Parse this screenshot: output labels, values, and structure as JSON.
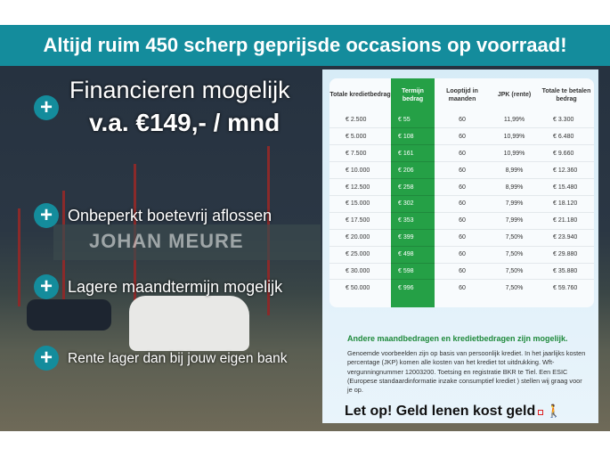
{
  "banner": {
    "title": "Altijd ruim 450 scherp geprijsde occasions op voorraad!"
  },
  "left": {
    "headline": "Financieren mogelijk",
    "price": "v.a. €149,- / mnd",
    "features": [
      "Onbeperkt boetevrij aflossen",
      "Lagere maandtermijn mogelijk",
      "Rente lager dan bij jouw eigen bank"
    ],
    "photo_sign": "JOHAN MEURE"
  },
  "table": {
    "headers": [
      "Totale kredietbedrag",
      "Termijn bedrag",
      "Looptijd in maanden",
      "JPK (rente)",
      "Totale te betalen bedrag"
    ],
    "rows": [
      [
        "€ 2.500",
        "€ 55",
        "60",
        "11,99%",
        "€ 3.300"
      ],
      [
        "€ 5.000",
        "€ 108",
        "60",
        "10,99%",
        "€ 6.480"
      ],
      [
        "€ 7.500",
        "€ 161",
        "60",
        "10,99%",
        "€ 9.660"
      ],
      [
        "€ 10.000",
        "€ 206",
        "60",
        "8,99%",
        "€ 12.360"
      ],
      [
        "€ 12.500",
        "€ 258",
        "60",
        "8,99%",
        "€ 15.480"
      ],
      [
        "€ 15.000",
        "€ 302",
        "60",
        "7,99%",
        "€ 18.120"
      ],
      [
        "€ 17.500",
        "€ 353",
        "60",
        "7,99%",
        "€ 21.180"
      ],
      [
        "€ 20.000",
        "€ 399",
        "60",
        "7,50%",
        "€ 23.940"
      ],
      [
        "€ 25.000",
        "€ 498",
        "60",
        "7,50%",
        "€ 29.880"
      ],
      [
        "€ 30.000",
        "€ 598",
        "60",
        "7,50%",
        "€ 35.880"
      ],
      [
        "€ 50.000",
        "€ 996",
        "60",
        "7,50%",
        "€ 59.760"
      ]
    ],
    "highlight_color": "#25a046"
  },
  "note": {
    "title": "Andere maandbedragen en kredietbedragen zijn mogelijk.",
    "body": "Genoemde voorbeelden zijn op basis van persoonlijk krediet. In het jaarlijks kosten percentage (JKP) komen alle kosten van het krediet tot uitdrukking. Wft-vergunningnummer 12003200. Toetsing en registratie BKR te Tiel. Een ESIC (Europese standaardinformatie inzake consumptief krediet ) stellen wij graag voor je op."
  },
  "warning": {
    "text": "Let op! Geld lenen kost geld"
  },
  "colors": {
    "brand": "#148c9c",
    "green": "#25a046"
  }
}
